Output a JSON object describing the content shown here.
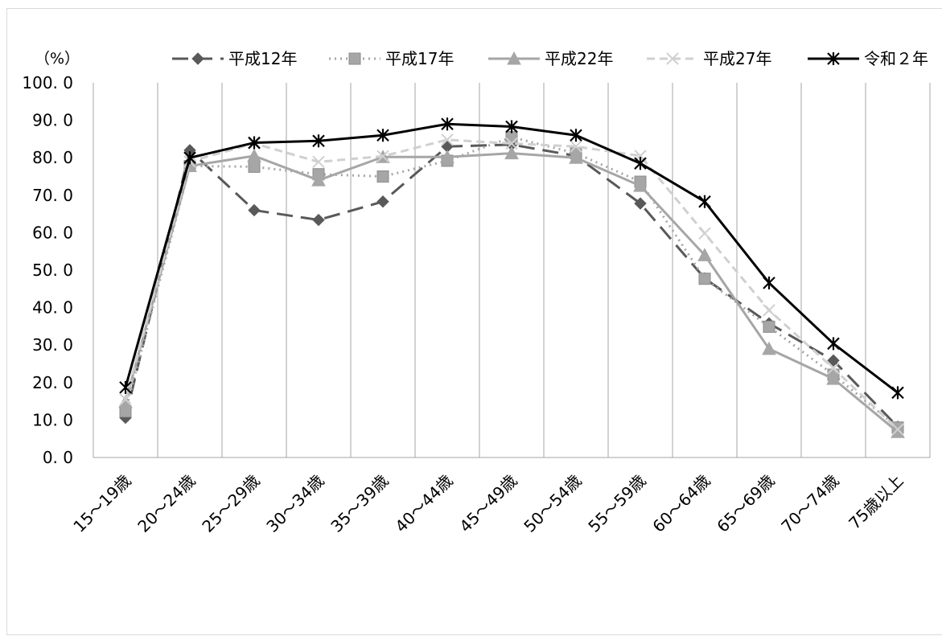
{
  "chart_data": {
    "type": "line",
    "ylabel": "（%）",
    "ylim": [
      0,
      100
    ],
    "yticks": [
      "0. 0",
      "10. 0",
      "20. 0",
      "30. 0",
      "40. 0",
      "50. 0",
      "60. 0",
      "70. 0",
      "80. 0",
      "90. 0",
      "100. 0"
    ],
    "categories": [
      "15～19歳",
      "20～24歳",
      "25～29歳",
      "30～34歳",
      "35～39歳",
      "40～44歳",
      "45～49歳",
      "50～54歳",
      "55～59歳",
      "60～64歳",
      "65～69歳",
      "70～74歳",
      "75歳以上"
    ],
    "grid": "vertical",
    "legend": "top",
    "series": [
      {
        "name": "平成12年",
        "marker": "diamond",
        "color": "#595959",
        "dash": "long-dash",
        "values": [
          10.6,
          82.0,
          66.0,
          63.4,
          68.3,
          83.0,
          83.5,
          80.5,
          67.8,
          47.8,
          35.8,
          25.9,
          8.2
        ]
      },
      {
        "name": "平成17年",
        "marker": "square",
        "color": "#a6a6a6",
        "dash": "dot",
        "values": [
          12.3,
          77.8,
          77.6,
          75.6,
          75.0,
          79.2,
          85.5,
          81.2,
          73.6,
          47.7,
          34.9,
          22.1,
          8.0
        ]
      },
      {
        "name": "平成22年",
        "marker": "triangle",
        "color": "#a6a6a6",
        "dash": "solid",
        "values": [
          14.8,
          77.8,
          80.5,
          74.0,
          80.2,
          80.2,
          81.2,
          80.0,
          72.5,
          54.0,
          29.0,
          21.0,
          6.8
        ]
      },
      {
        "name": "平成27年",
        "marker": "x",
        "color": "#d0d0d0",
        "dash": "dash",
        "values": [
          15.5,
          79.0,
          83.8,
          78.9,
          80.4,
          84.8,
          83.8,
          83.0,
          80.5,
          59.8,
          39.3,
          23.8,
          7.5
        ]
      },
      {
        "name": "令和２年",
        "marker": "star",
        "color": "#000000",
        "dash": "solid",
        "values": [
          18.7,
          80.0,
          84.0,
          84.5,
          86.0,
          89.0,
          88.3,
          86.0,
          78.5,
          68.3,
          46.6,
          30.4,
          17.3
        ]
      }
    ]
  }
}
